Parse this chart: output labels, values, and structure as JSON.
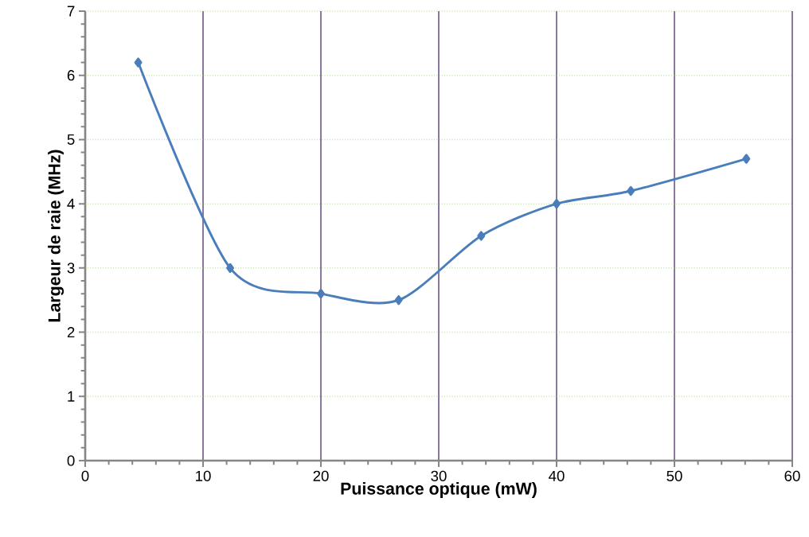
{
  "chart_data": {
    "type": "line",
    "xlabel": "Puissance optique (mW)",
    "ylabel": "Largeur de raie (MHz)",
    "x": [
      4.5,
      12.3,
      20.0,
      26.6,
      33.6,
      40.0,
      46.3,
      56.1
    ],
    "values": [
      6.2,
      3.0,
      2.6,
      2.5,
      3.5,
      4.0,
      4.2,
      4.7
    ],
    "color": "#4a7ebb",
    "marker": "diamond",
    "line_style": "solid",
    "grid": true,
    "xlim": [
      0,
      60
    ],
    "xticks": [
      0,
      10,
      20,
      30,
      40,
      50,
      60
    ],
    "ylim": [
      0,
      7
    ],
    "yticks": [
      0,
      1,
      2,
      3,
      4,
      5,
      6,
      7
    ]
  }
}
